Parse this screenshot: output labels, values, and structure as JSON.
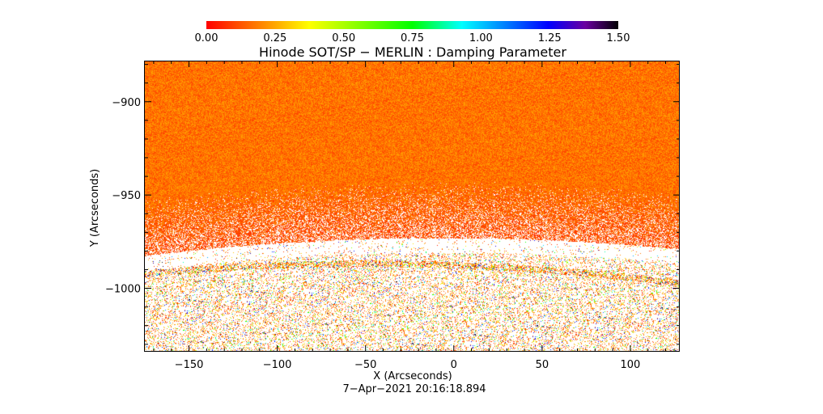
{
  "chart_data": {
    "type": "heatmap",
    "title": "Hinode SOT/SP − MERLIN : Damping Parameter",
    "xlabel": "X (Arcseconds)",
    "ylabel": "Y (Arcseconds)",
    "timestamp": "7−Apr−2021 20:16:18.894",
    "xlim": [
      -175,
      128
    ],
    "ylim": [
      -1034,
      -878
    ],
    "x_ticks": [
      -150,
      -100,
      -50,
      0,
      50,
      100
    ],
    "x_tick_labels": [
      "−150",
      "−100",
      "−50",
      "0",
      "50",
      "100"
    ],
    "y_ticks": [
      -900,
      -950,
      -1000
    ],
    "y_tick_labels": [
      "−900",
      "−950",
      "−1000"
    ],
    "colorbar": {
      "range": [
        0,
        1.5
      ],
      "ticks": [
        0,
        0.25,
        0.5,
        0.75,
        1.0,
        1.25,
        1.5
      ],
      "tick_labels": [
        "0.00",
        "0.25",
        "0.50",
        "0.75",
        "1.00",
        "1.25",
        "1.50"
      ],
      "colors": [
        "#ff0000",
        "#ffff00",
        "#00ff00",
        "#00ffff",
        "#0000ff",
        "#800080",
        "#000000"
      ]
    },
    "grid": false,
    "limb_y_approx": -973,
    "disk_value_range": [
      0.05,
      0.3
    ]
  }
}
